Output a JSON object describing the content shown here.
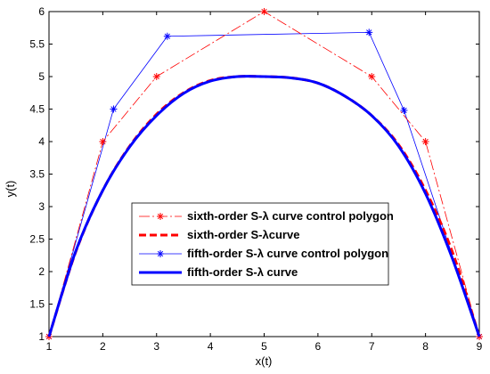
{
  "chart_data": {
    "type": "line",
    "xlabel": "x(t)",
    "ylabel": "y(t)",
    "xlim": [
      1,
      9
    ],
    "ylim": [
      1,
      6
    ],
    "xticks": [
      "1",
      "2",
      "3",
      "4",
      "5",
      "6",
      "7",
      "8",
      "9"
    ],
    "yticks": [
      "1",
      "1.5",
      "2",
      "2.5",
      "3",
      "3.5",
      "4",
      "4.5",
      "5",
      "5.5",
      "6"
    ],
    "grid": false,
    "legend_position": "bottom-center",
    "series": [
      {
        "name": "sixth-order S-λ curve control polygon",
        "style": "dash-dot with star markers",
        "color": "#ff0000",
        "x": [
          1,
          2,
          3,
          5,
          7,
          8,
          9
        ],
        "y": [
          1,
          4,
          5,
          6,
          5,
          4,
          1
        ]
      },
      {
        "name": "sixth-order S-λcurve",
        "style": "thick dashed",
        "color": "#ff0000",
        "x": [
          1,
          1.5,
          2,
          2.5,
          3,
          3.5,
          4,
          4.5,
          5,
          5.5,
          6,
          6.5,
          7,
          7.5,
          8,
          8.5,
          9
        ],
        "y": [
          1,
          2.31,
          3.25,
          3.93,
          4.42,
          4.75,
          4.94,
          5.0,
          5.0,
          4.98,
          4.9,
          4.7,
          4.4,
          3.95,
          3.25,
          2.3,
          1
        ]
      },
      {
        "name": "fifth-order S-λ curve control polygon",
        "style": "thin solid with star markers",
        "color": "#0000ff",
        "x": [
          1,
          2.2,
          3.2,
          6.95,
          7.6,
          9
        ],
        "y": [
          1,
          4.5,
          5.62,
          5.68,
          4.48,
          1
        ]
      },
      {
        "name": "fifth-order S-λ curve",
        "style": "thick solid",
        "color": "#0000ff",
        "x": [
          1,
          1.5,
          2,
          2.5,
          3,
          3.5,
          4,
          4.5,
          5,
          5.5,
          6,
          6.5,
          7,
          7.5,
          8,
          8.5,
          9
        ],
        "y": [
          1,
          2.32,
          3.25,
          3.92,
          4.4,
          4.74,
          4.93,
          5.0,
          5.0,
          4.98,
          4.9,
          4.7,
          4.4,
          3.93,
          3.2,
          2.2,
          1
        ]
      }
    ]
  }
}
